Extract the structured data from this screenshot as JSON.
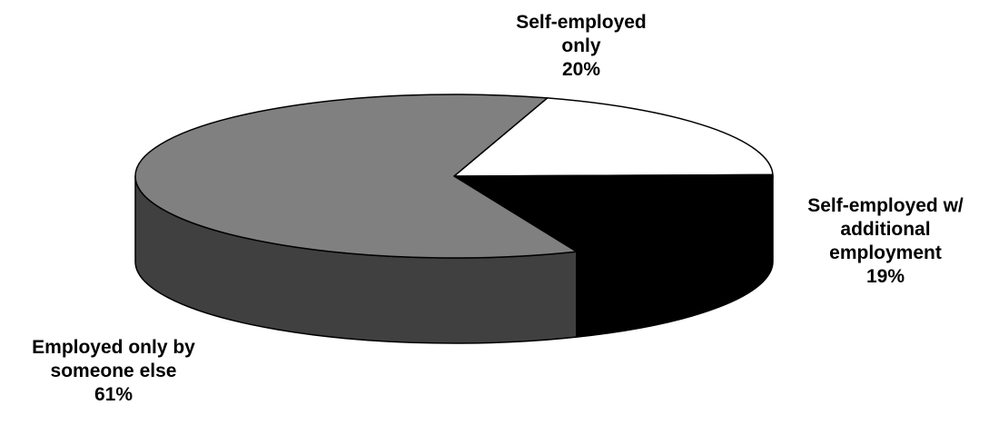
{
  "chart_data": {
    "type": "pie",
    "style": "3d",
    "slices": [
      {
        "key": "self_employed_only",
        "label_lines": [
          "Self-employed",
          "only"
        ],
        "value": 20,
        "value_label": "20%",
        "color": "#ffffff"
      },
      {
        "key": "self_employed_additional",
        "label_lines": [
          "Self-employed w/",
          "additional",
          "employment"
        ],
        "value": 19,
        "value_label": "19%",
        "color": "#000000"
      },
      {
        "key": "employed_by_someone_else",
        "label_lines": [
          "Employed only by",
          "someone else"
        ],
        "value": 61,
        "value_label": "61%",
        "color": "#808080"
      }
    ]
  }
}
